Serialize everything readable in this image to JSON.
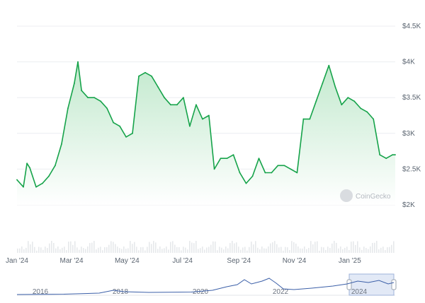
{
  "chart_data": {
    "type": "area",
    "watermark": "CoinGecko",
    "y_axis": {
      "position": "right",
      "ylim": [
        2000,
        4500
      ],
      "ticks": [
        2000,
        2500,
        3000,
        3500,
        4000,
        4500
      ],
      "tick_labels": [
        "$2K",
        "$2.5K",
        "$3K",
        "$3.5K",
        "$4K",
        "$4.5K"
      ]
    },
    "x_axis": {
      "xlim": [
        "2024-01-01",
        "2025-02-20"
      ],
      "ticks": [
        "2024-01-01",
        "2024-03-01",
        "2024-05-01",
        "2024-07-01",
        "2024-09-01",
        "2024-11-01",
        "2025-01-01"
      ],
      "tick_labels": [
        "Jan '24",
        "Mar '24",
        "May '24",
        "Jul '24",
        "Sep '24",
        "Nov '24",
        "Jan '25"
      ]
    },
    "grid": "horizontal",
    "colors": {
      "line": "#16a34a",
      "fill_top": "#bfe8cb",
      "fill_bottom": "#ffffff",
      "volume": "#e6e8eb",
      "navigator_line": "#3b5fa8",
      "navigator_window": "#d5dff2"
    },
    "series": [
      {
        "x": [
          "2024-01-01",
          "2024-01-08",
          "2024-01-12",
          "2024-01-15",
          "2024-01-22",
          "2024-01-29",
          "2024-02-05",
          "2024-02-12",
          "2024-02-19",
          "2024-02-26",
          "2024-03-04",
          "2024-03-08",
          "2024-03-12",
          "2024-03-19",
          "2024-03-26",
          "2024-04-02",
          "2024-04-09",
          "2024-04-16",
          "2024-04-23",
          "2024-04-30",
          "2024-05-07",
          "2024-05-14",
          "2024-05-21",
          "2024-05-28",
          "2024-06-04",
          "2024-06-11",
          "2024-06-18",
          "2024-06-25",
          "2024-07-02",
          "2024-07-09",
          "2024-07-16",
          "2024-07-23",
          "2024-07-30",
          "2024-08-05",
          "2024-08-12",
          "2024-08-19",
          "2024-08-26",
          "2024-09-02",
          "2024-09-09",
          "2024-09-16",
          "2024-09-23",
          "2024-09-30",
          "2024-10-07",
          "2024-10-14",
          "2024-10-21",
          "2024-10-28",
          "2024-11-04",
          "2024-11-11",
          "2024-11-18",
          "2024-11-25",
          "2024-12-02",
          "2024-12-09",
          "2024-12-16",
          "2024-12-23",
          "2024-12-30",
          "2025-01-06",
          "2025-01-13",
          "2025-01-20",
          "2025-01-27",
          "2025-02-03",
          "2025-02-10",
          "2025-02-17",
          "2025-02-20"
        ],
        "values": [
          2350,
          2250,
          2580,
          2520,
          2250,
          2300,
          2400,
          2550,
          2850,
          3350,
          3700,
          4000,
          3600,
          3500,
          3500,
          3450,
          3350,
          3150,
          3100,
          2950,
          3000,
          3800,
          3850,
          3800,
          3650,
          3500,
          3400,
          3400,
          3500,
          3100,
          3400,
          3200,
          3250,
          2500,
          2650,
          2650,
          2700,
          2450,
          2300,
          2400,
          2650,
          2450,
          2450,
          2550,
          2550,
          2500,
          2450,
          3200,
          3200,
          3450,
          3700,
          3950,
          3650,
          3400,
          3500,
          3450,
          3350,
          3300,
          3200,
          2700,
          2650,
          2700,
          2700
        ]
      }
    ],
    "navigator": {
      "ticks": [
        "2016",
        "2018",
        "2020",
        "2022",
        "2024"
      ],
      "selected_range": [
        "2024-01-01",
        "2025-02-20"
      ]
    }
  }
}
